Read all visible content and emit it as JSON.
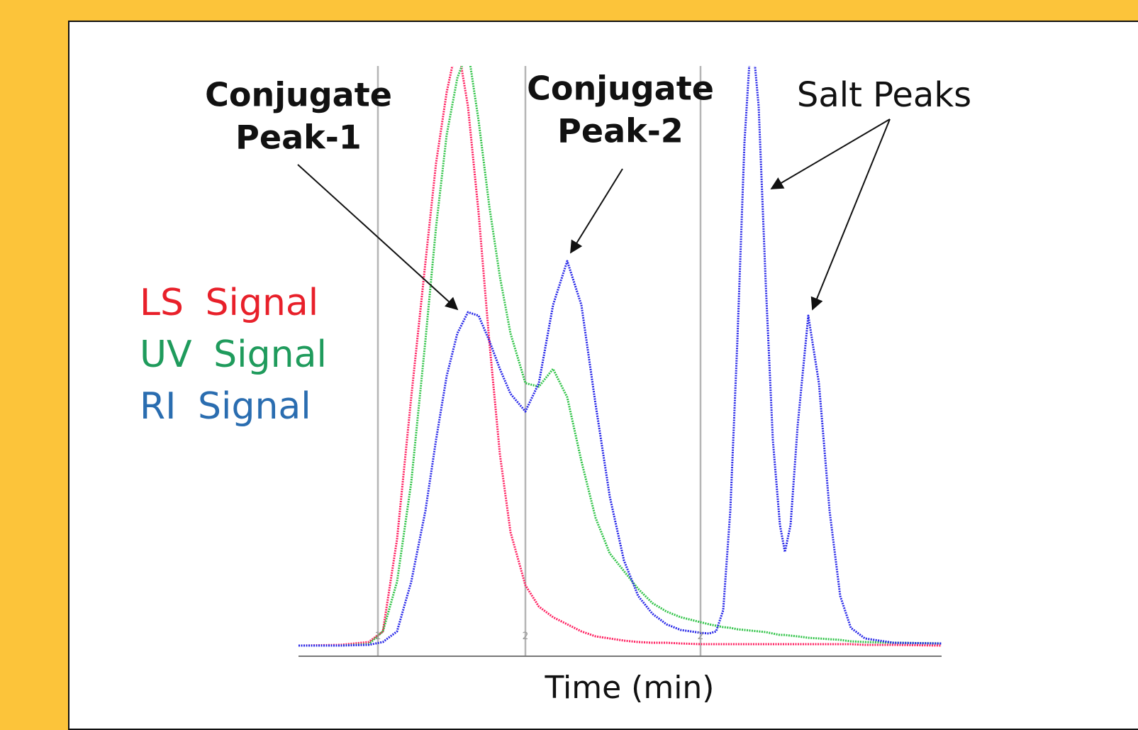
{
  "chart_data": {
    "type": "line",
    "x_label": "Time (min)",
    "annotations": [
      {
        "lines": [
          "Conjugate",
          "Peak-1"
        ]
      },
      {
        "lines": [
          "Conjugate",
          "Peak-2"
        ]
      },
      {
        "lines": [
          "Salt Peaks"
        ]
      }
    ],
    "x": [
      0,
      5.9,
      9.9,
      11.9,
      13.9,
      15.9,
      17.9,
      19.4,
      20.9,
      22.4,
      23.9,
      25.4,
      26.9,
      28.4,
      29.9,
      32,
      33.9,
      35.9,
      37.9,
      39.9,
      41.9,
      43.9,
      45.9,
      47.9,
      49.9,
      51.9,
      53.9,
      56.7,
      57.9,
      58.9,
      59.9,
      60.9,
      61.9,
      62.9,
      63.9,
      64.9,
      65.9,
      66.9,
      67.9,
      68.6,
      69.4,
      70.4,
      71.9,
      73.4,
      74.9,
      76.4,
      77.9,
      79.9,
      83.9,
      90.7
    ],
    "series": [
      {
        "name": "LS Signal",
        "color": "#ff2060",
        "label_color": "#e8202a",
        "values": [
          1.5,
          1.6,
          2,
          3.5,
          16.5,
          36.5,
          55.5,
          69.5,
          79.5,
          86.5,
          77.5,
          62.5,
          44.5,
          28.5,
          17.5,
          10,
          7,
          5.5,
          4.5,
          3.5,
          2.8,
          2.5,
          2.2,
          2,
          1.9,
          1.9,
          1.8,
          1.7,
          1.7,
          1.7,
          1.7,
          1.7,
          1.7,
          1.7,
          1.7,
          1.7,
          1.7,
          1.7,
          1.7,
          1.7,
          1.7,
          1.7,
          1.7,
          1.7,
          1.7,
          1.7,
          1.7,
          1.6,
          1.6,
          1.5
        ]
      },
      {
        "name": "UV Signal",
        "color": "#33c44a",
        "label_color": "#1f9b5c",
        "values": [
          1.5,
          1.5,
          1.7,
          3.5,
          10.5,
          24.5,
          44.5,
          60.5,
          73.5,
          81.5,
          85.5,
          75.5,
          63.5,
          53.5,
          45.5,
          38.5,
          38,
          40.5,
          36.5,
          27.5,
          19.5,
          14.5,
          12,
          9.5,
          7.5,
          6.3,
          5.5,
          4.8,
          4.5,
          4.3,
          4.1,
          4,
          3.8,
          3.7,
          3.6,
          3.5,
          3.4,
          3.2,
          3,
          3,
          2.9,
          2.8,
          2.6,
          2.5,
          2.4,
          2.3,
          2.1,
          2,
          1.9,
          1.8
        ]
      },
      {
        "name": "RI Signal",
        "color": "#2828e8",
        "label_color": "#2a6db0",
        "values": [
          1.5,
          1.5,
          1.6,
          2,
          3.5,
          10.5,
          20.5,
          30.5,
          39.5,
          45.5,
          48.5,
          48,
          44.5,
          40.5,
          37,
          34.5,
          38.5,
          49.5,
          55.7,
          49.5,
          35.5,
          22.5,
          13.5,
          8.5,
          6,
          4.5,
          3.7,
          3.3,
          3.2,
          3.5,
          6.5,
          20.5,
          44.5,
          72.5,
          88.5,
          77.5,
          52.5,
          30.5,
          18.5,
          14.7,
          18.5,
          32.5,
          48,
          38.5,
          20.5,
          8.5,
          4,
          2.5,
          1.9,
          1.8
        ]
      }
    ],
    "xlim": [
      0,
      90.7
    ],
    "ylim": [
      0,
      83.2
    ],
    "xticks": [
      {
        "value": 11.2,
        "label": "1"
      },
      {
        "value": 32,
        "label": "2"
      },
      {
        "value": 56.7,
        "label": "2"
      }
    ],
    "grid": true
  }
}
